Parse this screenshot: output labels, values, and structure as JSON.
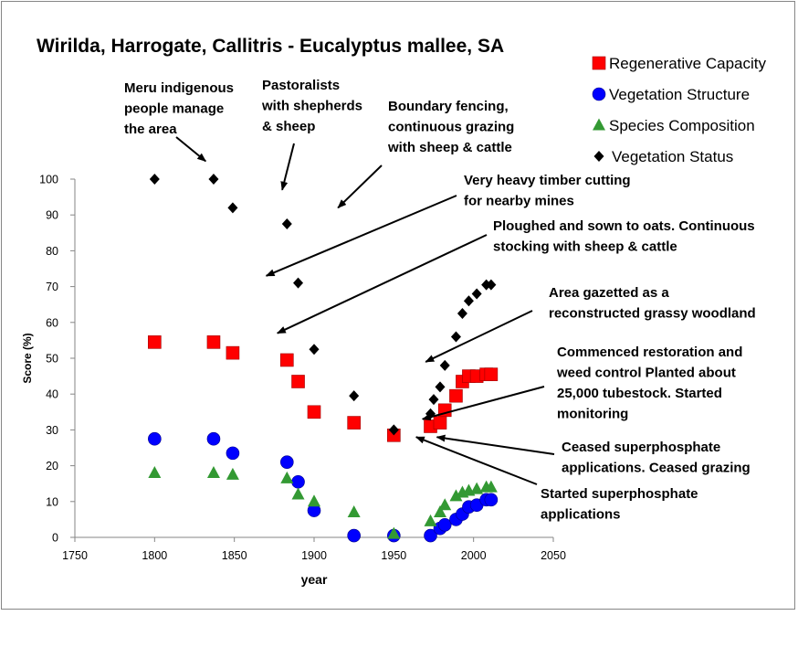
{
  "chart_data": {
    "type": "scatter",
    "title": "Wirilda, Harrogate, Callitris - Eucalyptus mallee, SA",
    "xlabel": "year",
    "ylabel": "Score (%)",
    "xlim": [
      1750,
      2050
    ],
    "ylim": [
      0,
      100
    ],
    "xticks": [
      "1750",
      "1800",
      "1850",
      "1900",
      "1950",
      "2000",
      "2050"
    ],
    "yticks": [
      "0",
      "10",
      "20",
      "30",
      "40",
      "50",
      "60",
      "70",
      "80",
      "90",
      "100"
    ],
    "grid": false,
    "legend_position": "top-right",
    "series": [
      {
        "name": "Regenerative Capacity",
        "marker": "square",
        "color": "#ff0000",
        "points": [
          [
            1800,
            54.5
          ],
          [
            1837,
            54.5
          ],
          [
            1849,
            51.5
          ],
          [
            1883,
            49.5
          ],
          [
            1890,
            43.5
          ],
          [
            1900,
            35
          ],
          [
            1925,
            32
          ],
          [
            1950,
            28.5
          ],
          [
            1973,
            31
          ],
          [
            1979,
            32
          ],
          [
            1982,
            35.5
          ],
          [
            1989,
            39.5
          ],
          [
            1993,
            43.5
          ],
          [
            1997,
            45
          ],
          [
            2002,
            45
          ],
          [
            2008,
            45.5
          ],
          [
            2011,
            45.5
          ]
        ]
      },
      {
        "name": "Vegetation Structure",
        "marker": "circle",
        "color": "#0000ff",
        "points": [
          [
            1800,
            27.5
          ],
          [
            1837,
            27.5
          ],
          [
            1849,
            23.5
          ],
          [
            1883,
            21
          ],
          [
            1890,
            15.5
          ],
          [
            1900,
            7.5
          ],
          [
            1925,
            0.5
          ],
          [
            1950,
            0.5
          ],
          [
            1973,
            0.5
          ],
          [
            1979,
            2.5
          ],
          [
            1982,
            3.5
          ],
          [
            1989,
            5
          ],
          [
            1993,
            6.5
          ],
          [
            1997,
            8.5
          ],
          [
            2002,
            9
          ],
          [
            2008,
            10.5
          ],
          [
            2011,
            10.5
          ]
        ]
      },
      {
        "name": "Species Composition",
        "marker": "triangle",
        "color": "#339933",
        "points": [
          [
            1800,
            18
          ],
          [
            1837,
            18
          ],
          [
            1849,
            17.5
          ],
          [
            1883,
            16.5
          ],
          [
            1890,
            12
          ],
          [
            1900,
            10
          ],
          [
            1925,
            7
          ],
          [
            1950,
            1
          ],
          [
            1973,
            4.5
          ],
          [
            1979,
            7
          ],
          [
            1982,
            9
          ],
          [
            1989,
            11.5
          ],
          [
            1993,
            12.5
          ],
          [
            1997,
            13
          ],
          [
            2002,
            13.5
          ],
          [
            2008,
            14
          ],
          [
            2011,
            14
          ]
        ]
      },
      {
        "name": "Vegetation Status",
        "marker": "diamond",
        "color": "#000000",
        "points": [
          [
            1800,
            100
          ],
          [
            1837,
            100
          ],
          [
            1849,
            92
          ],
          [
            1883,
            87.5
          ],
          [
            1890,
            71
          ],
          [
            1900,
            52.5
          ],
          [
            1925,
            39.5
          ],
          [
            1950,
            30
          ],
          [
            1973,
            34.5
          ],
          [
            1975,
            38.5
          ],
          [
            1979,
            42
          ],
          [
            1982,
            48
          ],
          [
            1989,
            56
          ],
          [
            1993,
            62.5
          ],
          [
            1997,
            66
          ],
          [
            2002,
            68
          ],
          [
            2008,
            70.5
          ],
          [
            2011,
            70.5
          ]
        ]
      }
    ],
    "annotations": [
      {
        "lines": [
          "Meru indigenous",
          "people manage",
          "the area"
        ],
        "arrow_to": [
          1832,
          105
        ]
      },
      {
        "lines": [
          "Pastoralists",
          "with shepherds",
          "& sheep"
        ],
        "arrow_to": [
          1880,
          97
        ]
      },
      {
        "lines": [
          "Boundary fencing,",
          "continuous grazing",
          "with sheep & cattle"
        ],
        "arrow_to": [
          1915,
          92
        ]
      },
      {
        "lines": [
          "Very heavy timber cutting",
          "for nearby mines"
        ],
        "arrow_to": [
          1870,
          73
        ]
      },
      {
        "lines": [
          "Ploughed and  sown to oats. Continuous",
          "stocking with sheep & cattle"
        ],
        "arrow_to": [
          1877,
          57
        ]
      },
      {
        "lines": [
          "Area gazetted as a",
          "reconstructed grassy woodland"
        ],
        "arrow_to": [
          1970,
          49
        ]
      },
      {
        "lines": [
          "Commenced restoration and",
          "weed control Planted about",
          "25,000 tubestock. Started",
          "monitoring"
        ],
        "arrow_to": [
          1968,
          33
        ]
      },
      {
        "lines": [
          "Ceased superphosphate",
          "applications. Ceased grazing"
        ],
        "arrow_to": [
          1977,
          28
        ]
      },
      {
        "lines": [
          "Started superphosphate",
          "applications"
        ],
        "arrow_to": [
          1964,
          28
        ]
      }
    ]
  }
}
